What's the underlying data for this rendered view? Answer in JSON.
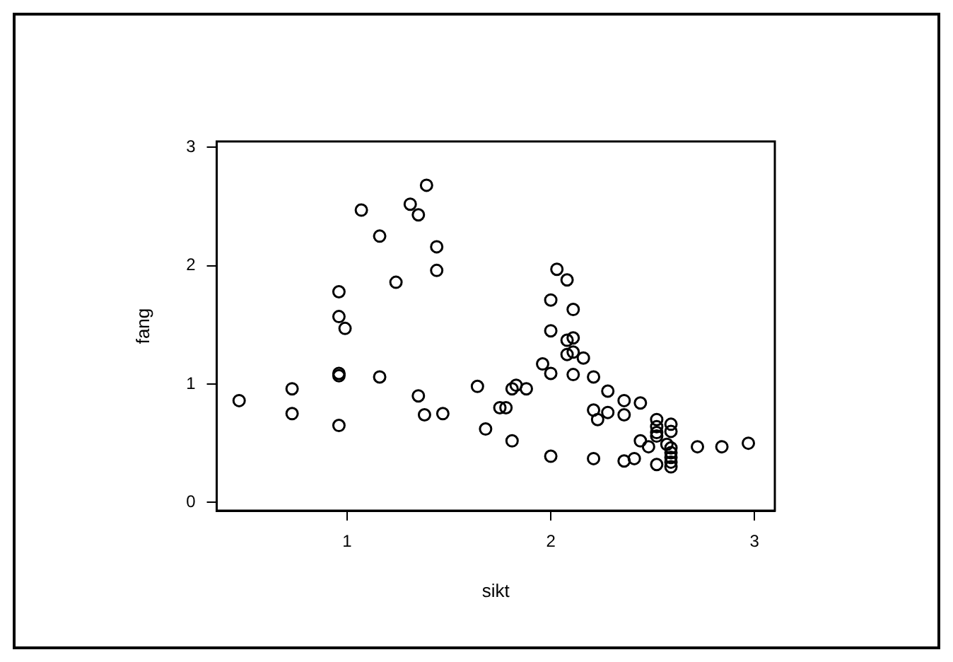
{
  "chart_data": {
    "type": "scatter",
    "xlabel": "sikt",
    "ylabel": "fang",
    "xlim": [
      0.36,
      3.1
    ],
    "ylim": [
      -0.07,
      3.05
    ],
    "xticks": [
      1,
      2,
      3
    ],
    "yticks": [
      0,
      1,
      2,
      3
    ],
    "grid": false,
    "legend": false,
    "marker": "circle",
    "series": [
      {
        "color": "#000000",
        "x": [
          0.47,
          0.73,
          0.73,
          0.96,
          0.96,
          0.99,
          0.96,
          0.96,
          0.96,
          1.07,
          1.16,
          1.16,
          1.24,
          1.31,
          1.35,
          1.39,
          1.44,
          1.44,
          1.35,
          1.38,
          1.47,
          1.64,
          1.68,
          2.03,
          2.08,
          2.0,
          2.11,
          2.0,
          2.08,
          2.11,
          2.08,
          2.11,
          2.16,
          1.96,
          2.0,
          2.11,
          2.21,
          1.81,
          1.83,
          1.88,
          1.75,
          1.78,
          1.81,
          2.0,
          2.21,
          2.28,
          2.36,
          2.44,
          2.21,
          2.28,
          2.23,
          2.36,
          2.52,
          2.52,
          2.52,
          2.52,
          2.59,
          2.59,
          2.44,
          2.48,
          2.57,
          2.59,
          2.59,
          2.59,
          2.59,
          2.59,
          2.52,
          2.36,
          2.41,
          2.72,
          2.84,
          2.97
        ],
        "values": [
          0.86,
          0.96,
          0.75,
          1.78,
          1.57,
          1.47,
          1.09,
          1.07,
          0.65,
          2.47,
          2.25,
          1.06,
          1.86,
          2.52,
          2.43,
          2.68,
          2.16,
          1.96,
          0.9,
          0.74,
          0.75,
          0.98,
          0.62,
          1.97,
          1.88,
          1.71,
          1.63,
          1.45,
          1.37,
          1.39,
          1.25,
          1.27,
          1.22,
          1.17,
          1.09,
          1.08,
          1.06,
          0.96,
          0.99,
          0.96,
          0.8,
          0.8,
          0.52,
          0.39,
          0.37,
          0.94,
          0.86,
          0.84,
          0.78,
          0.76,
          0.7,
          0.74,
          0.7,
          0.64,
          0.59,
          0.56,
          0.66,
          0.6,
          0.52,
          0.47,
          0.49,
          0.46,
          0.42,
          0.38,
          0.34,
          0.3,
          0.32,
          0.35,
          0.37,
          0.47,
          0.47,
          0.5
        ]
      }
    ]
  }
}
